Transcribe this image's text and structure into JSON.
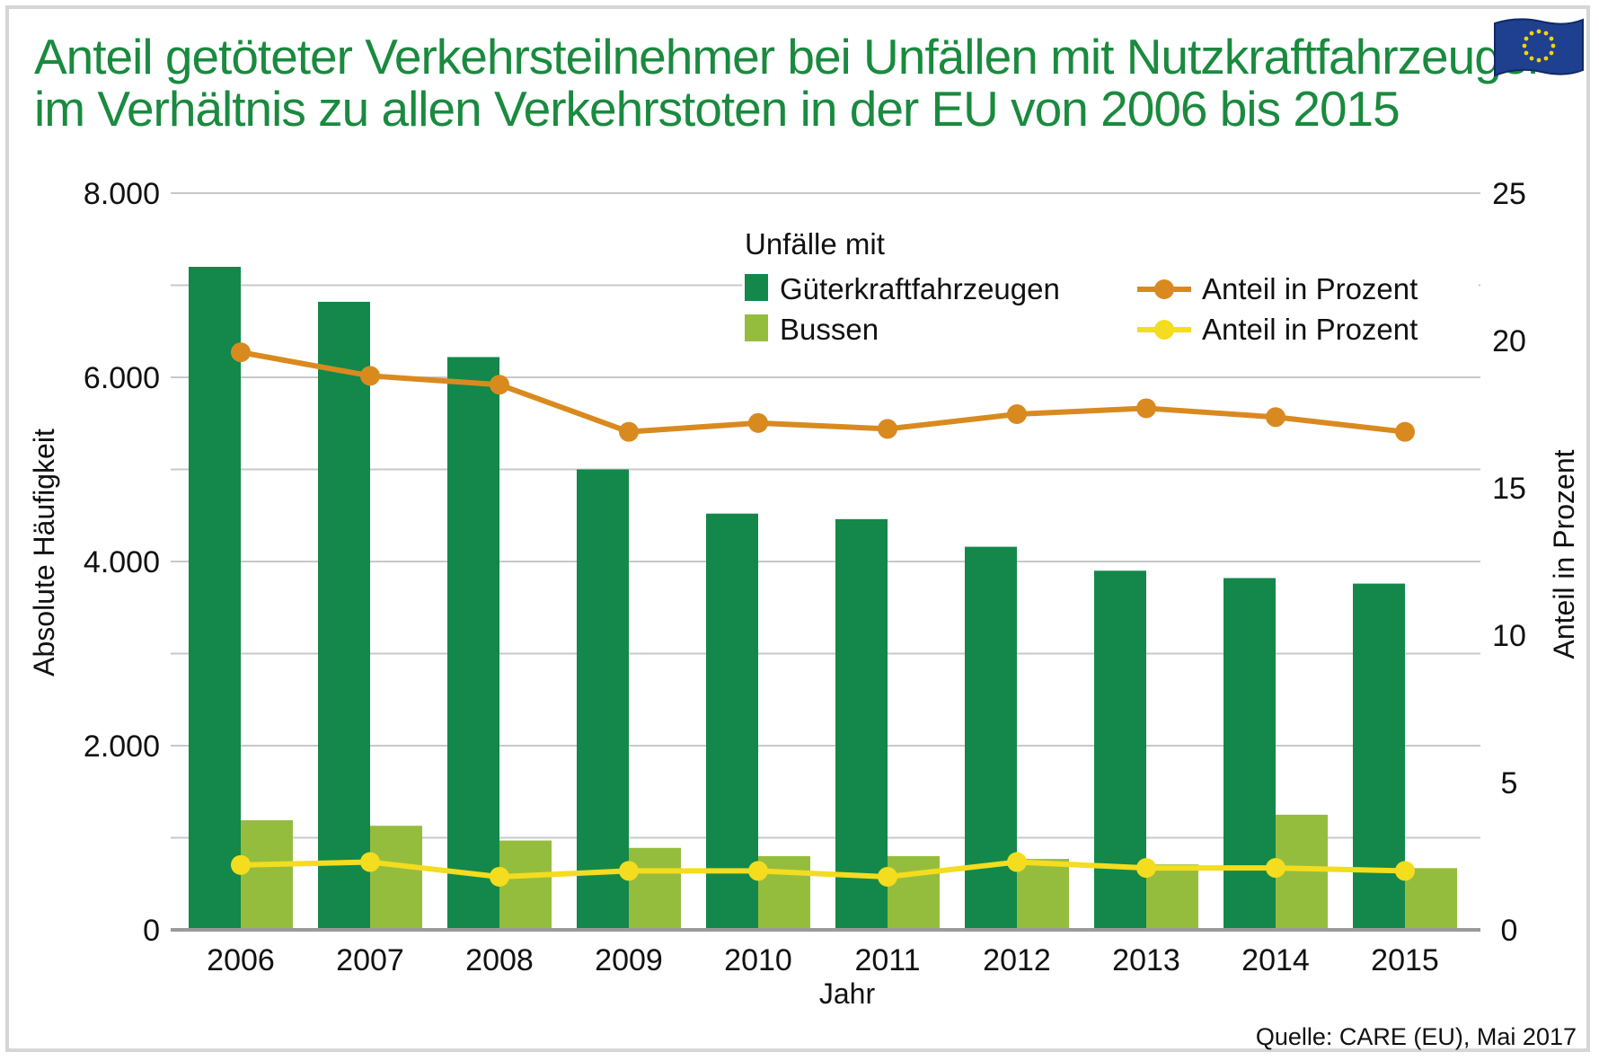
{
  "title_lines": [
    "Anteil getöteter Verkehrsteilnehmer bei Unfällen mit Nutzkraftfahrzeugen",
    "im Verhältnis zu allen Verkehrstoten in der EU von 2006 bis 2015"
  ],
  "source": "Quelle: CARE (EU), Mai 2017",
  "colors": {
    "title": "#1a8a3f",
    "bar_trucks": "#13884a",
    "bar_buses": "#95bd3d",
    "line_trucks": "#d98a1f",
    "line_buses": "#f4dc1e",
    "grid": "#c8c8c8"
  },
  "chart_data": {
    "type": "bar",
    "categories": [
      "2006",
      "2007",
      "2008",
      "2009",
      "2010",
      "2011",
      "2012",
      "2013",
      "2014",
      "2015"
    ],
    "series": [
      {
        "name": "Güterkraftfahrzeugen",
        "kind": "bar",
        "axis": "left",
        "values": [
          7200,
          6820,
          6220,
          5000,
          4520,
          4460,
          4160,
          3900,
          3820,
          3760
        ]
      },
      {
        "name": "Bussen",
        "kind": "bar",
        "axis": "left",
        "values": [
          1190,
          1130,
          970,
          890,
          800,
          800,
          770,
          710,
          1250,
          670
        ]
      },
      {
        "name": "Anteil in Prozent",
        "kind": "line",
        "axis": "right",
        "ref": "Güterkraftfahrzeugen",
        "values": [
          19.6,
          18.8,
          18.5,
          16.9,
          17.2,
          17.0,
          17.5,
          17.7,
          17.4,
          16.9
        ]
      },
      {
        "name": "Anteil in Prozent",
        "kind": "line",
        "axis": "right",
        "ref": "Bussen",
        "values": [
          2.2,
          2.3,
          1.8,
          2.0,
          2.0,
          1.8,
          2.3,
          2.1,
          2.1,
          2.0
        ]
      }
    ],
    "xlabel": "Jahr",
    "ylabel": "Absolute Häufigkeit",
    "ylabel_right": "Anteil in Prozent",
    "ylim": [
      0,
      8000
    ],
    "ylim_right": [
      0,
      25
    ],
    "yticks": [
      0,
      2000,
      4000,
      6000,
      8000
    ],
    "ytick_labels": [
      "0",
      "2.000",
      "4.000",
      "6.000",
      "8.000"
    ],
    "yticks_right": [
      "0",
      "5",
      "10",
      "15",
      "20",
      "25"
    ],
    "legend": {
      "heading": "Unfälle mit",
      "bar_labels": [
        "Güterkraftfahrzeugen",
        "Bussen"
      ],
      "line_labels": [
        "Anteil in Prozent",
        "Anteil in Prozent"
      ],
      "placement": "top-center"
    },
    "grid": true
  }
}
